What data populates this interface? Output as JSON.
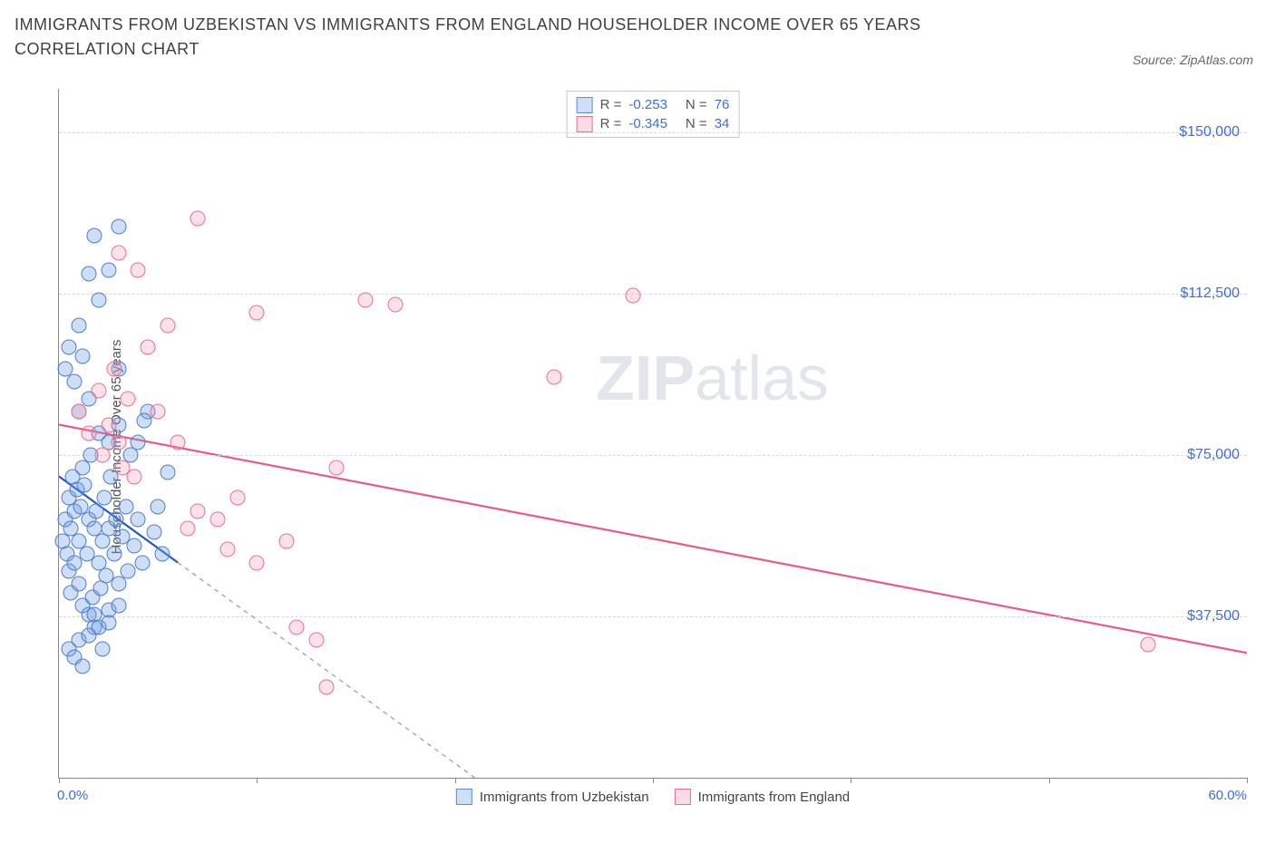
{
  "title": "IMMIGRANTS FROM UZBEKISTAN VS IMMIGRANTS FROM ENGLAND HOUSEHOLDER INCOME OVER 65 YEARS CORRELATION CHART",
  "source_label": "Source: ZipAtlas.com",
  "y_axis_title": "Householder Income Over 65 years",
  "watermark_bold": "ZIP",
  "watermark_rest": "atlas",
  "chart": {
    "type": "scatter",
    "xlim": [
      0,
      60
    ],
    "ylim": [
      0,
      160000
    ],
    "x_min_label": "0.0%",
    "x_max_label": "60.0%",
    "x_ticks": [
      0,
      10,
      20,
      30,
      40,
      50,
      60
    ],
    "y_gridlines": [
      {
        "value": 37500,
        "label": "$37,500"
      },
      {
        "value": 75000,
        "label": "$75,000"
      },
      {
        "value": 112500,
        "label": "$112,500"
      },
      {
        "value": 150000,
        "label": "$150,000"
      }
    ],
    "background_color": "#ffffff",
    "grid_color": "#d8d8d8",
    "axis_color": "#888888",
    "tick_label_color": "#3a6fd8",
    "series": [
      {
        "name": "Immigrants from Uzbekistan",
        "key": "uzbekistan",
        "fill": "rgba(115,160,230,0.35)",
        "stroke": "#4f7ecb",
        "swatch_fill": "#cde0f7",
        "swatch_border": "#5b8cd6",
        "R": "-0.253",
        "N": "76",
        "regression": {
          "x1": 0,
          "y1": 70000,
          "x2": 7.5,
          "y2": 45000,
          "solid_until_x": 6,
          "stroke": "#2456c9",
          "width": 2.2
        },
        "points": [
          [
            0.2,
            55000
          ],
          [
            0.3,
            60000
          ],
          [
            0.4,
            52000
          ],
          [
            0.5,
            48000
          ],
          [
            0.5,
            65000
          ],
          [
            0.6,
            58000
          ],
          [
            0.6,
            43000
          ],
          [
            0.7,
            70000
          ],
          [
            0.8,
            62000
          ],
          [
            0.8,
            50000
          ],
          [
            0.9,
            67000
          ],
          [
            1.0,
            55000
          ],
          [
            1.0,
            45000
          ],
          [
            1.1,
            63000
          ],
          [
            1.2,
            72000
          ],
          [
            1.2,
            40000
          ],
          [
            1.3,
            68000
          ],
          [
            1.4,
            52000
          ],
          [
            1.5,
            60000
          ],
          [
            1.5,
            38000
          ],
          [
            1.6,
            75000
          ],
          [
            1.7,
            42000
          ],
          [
            1.8,
            58000
          ],
          [
            1.8,
            35000
          ],
          [
            1.9,
            62000
          ],
          [
            2.0,
            50000
          ],
          [
            2.0,
            80000
          ],
          [
            2.1,
            44000
          ],
          [
            2.2,
            55000
          ],
          [
            2.3,
            65000
          ],
          [
            2.4,
            47000
          ],
          [
            2.5,
            58000
          ],
          [
            2.5,
            39000
          ],
          [
            2.6,
            70000
          ],
          [
            2.8,
            52000
          ],
          [
            2.9,
            60000
          ],
          [
            3.0,
            45000
          ],
          [
            3.0,
            82000
          ],
          [
            3.2,
            56000
          ],
          [
            3.4,
            63000
          ],
          [
            3.5,
            48000
          ],
          [
            3.6,
            75000
          ],
          [
            3.8,
            54000
          ],
          [
            4.0,
            60000
          ],
          [
            4.2,
            50000
          ],
          [
            4.5,
            85000
          ],
          [
            4.8,
            57000
          ],
          [
            5.0,
            63000
          ],
          [
            5.2,
            52000
          ],
          [
            5.5,
            71000
          ],
          [
            0.3,
            95000
          ],
          [
            0.5,
            100000
          ],
          [
            0.8,
            92000
          ],
          [
            1.0,
            105000
          ],
          [
            1.2,
            98000
          ],
          [
            1.5,
            117000
          ],
          [
            1.8,
            126000
          ],
          [
            2.0,
            111000
          ],
          [
            2.5,
            118000
          ],
          [
            3.0,
            95000
          ],
          [
            0.5,
            30000
          ],
          [
            0.8,
            28000
          ],
          [
            1.0,
            32000
          ],
          [
            1.2,
            26000
          ],
          [
            1.5,
            33000
          ],
          [
            1.8,
            38000
          ],
          [
            2.0,
            35000
          ],
          [
            2.2,
            30000
          ],
          [
            2.5,
            36000
          ],
          [
            3.0,
            40000
          ],
          [
            3.0,
            128000
          ],
          [
            1.0,
            85000
          ],
          [
            1.5,
            88000
          ],
          [
            2.5,
            78000
          ],
          [
            4.0,
            78000
          ],
          [
            4.3,
            83000
          ]
        ]
      },
      {
        "name": "Immigrants from England",
        "key": "england",
        "fill": "rgba(240,150,175,0.28)",
        "stroke": "#e86f94",
        "swatch_fill": "#f9dde6",
        "swatch_border": "#e86f94",
        "R": "-0.345",
        "N": "34",
        "regression": {
          "x1": 0,
          "y1": 82000,
          "x2": 60,
          "y2": 29000,
          "solid_until_x": 60,
          "stroke": "#ea5a88",
          "width": 2.2
        },
        "points": [
          [
            1.0,
            85000
          ],
          [
            1.5,
            80000
          ],
          [
            2.0,
            90000
          ],
          [
            2.2,
            75000
          ],
          [
            2.5,
            82000
          ],
          [
            2.8,
            95000
          ],
          [
            3.0,
            78000
          ],
          [
            3.2,
            72000
          ],
          [
            3.5,
            88000
          ],
          [
            3.8,
            70000
          ],
          [
            4.0,
            118000
          ],
          [
            4.5,
            100000
          ],
          [
            5.0,
            85000
          ],
          [
            5.5,
            105000
          ],
          [
            6.0,
            78000
          ],
          [
            6.5,
            58000
          ],
          [
            7.0,
            62000
          ],
          [
            7.0,
            130000
          ],
          [
            8.0,
            60000
          ],
          [
            8.5,
            53000
          ],
          [
            9.0,
            65000
          ],
          [
            10.0,
            50000
          ],
          [
            10.0,
            108000
          ],
          [
            11.5,
            55000
          ],
          [
            12.0,
            35000
          ],
          [
            13.0,
            32000
          ],
          [
            14.0,
            72000
          ],
          [
            15.5,
            111000
          ],
          [
            17.0,
            110000
          ],
          [
            25.0,
            93000
          ],
          [
            29.0,
            112000
          ],
          [
            13.5,
            21000
          ],
          [
            55.0,
            31000
          ],
          [
            3.0,
            122000
          ]
        ]
      }
    ]
  }
}
